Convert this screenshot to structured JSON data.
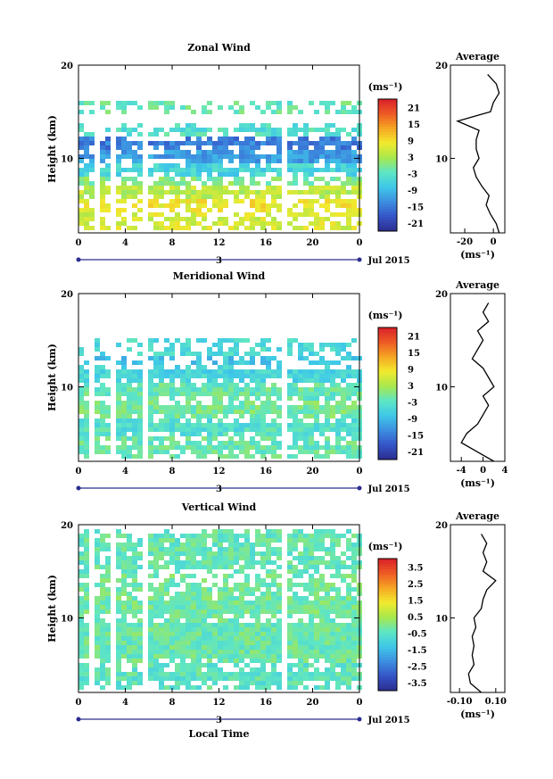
{
  "chart_data": [
    {
      "type": "heatmap",
      "title": "Zonal Wind",
      "ylabel": "Height (km)",
      "ylim": [
        2,
        20
      ],
      "xlim": [
        0,
        24
      ],
      "x_ticks": [
        "0",
        "4",
        "8",
        "12",
        "16",
        "20",
        "0"
      ],
      "y_ticks": [
        "10",
        "20"
      ],
      "date_label": "3",
      "month_label": "Jul 2015",
      "colorbar_unit": "(ms⁻¹)",
      "colorbar_ticks": [
        "21",
        "15",
        "9",
        "3",
        "-3",
        "-9",
        "-15",
        "-21"
      ],
      "colorbar_range": [
        -24,
        24
      ],
      "gaps_hours": [
        1.5,
        2.9,
        5.8,
        9.6,
        17.8
      ],
      "layers": [
        {
          "from": 2.5,
          "to": 4.0,
          "value": 6
        },
        {
          "from": 4.0,
          "to": 5.5,
          "value": 8
        },
        {
          "from": 5.5,
          "to": 7.0,
          "value": 4
        },
        {
          "from": 7.0,
          "to": 8.0,
          "value": 0
        },
        {
          "from": 8.0,
          "to": 9.5,
          "value": -6
        },
        {
          "from": 9.5,
          "to": 11.0,
          "value": -12
        },
        {
          "from": 11.0,
          "to": 12.3,
          "value": -15
        },
        {
          "from": 12.3,
          "to": 14.0,
          "value": -4
        },
        {
          "from": 14.5,
          "to": 16.0,
          "value": -2
        }
      ],
      "profile": {
        "title": "Average",
        "xlabel": "(ms⁻¹)",
        "x_ticks": [
          "-20",
          "0"
        ],
        "xlim": [
          -30,
          8
        ],
        "heights": [
          2,
          3,
          4,
          5,
          6,
          7,
          8,
          9,
          10,
          11,
          12,
          13,
          14,
          15,
          16,
          17,
          18,
          19
        ],
        "values": [
          4,
          2,
          -2,
          -5,
          -3,
          -8,
          -12,
          -14,
          -10,
          -12,
          -12,
          -10,
          -25,
          -2,
          0,
          4,
          2,
          -4
        ]
      }
    },
    {
      "type": "heatmap",
      "title": "Meridional Wind",
      "ylabel": "Height (km)",
      "ylim": [
        2,
        20
      ],
      "xlim": [
        0,
        24
      ],
      "x_ticks": [
        "0",
        "4",
        "8",
        "12",
        "16",
        "20",
        "0"
      ],
      "y_ticks": [
        "10",
        "20"
      ],
      "date_label": "3",
      "month_label": "Jul 2015",
      "colorbar_unit": "(ms⁻¹)",
      "colorbar_ticks": [
        "21",
        "15",
        "9",
        "3",
        "-3",
        "-9",
        "-15",
        "-21"
      ],
      "colorbar_range": [
        -24,
        24
      ],
      "gaps_hours": [
        1.3,
        2.9,
        5.8,
        9.6,
        17.8
      ],
      "layers": [
        {
          "from": 2.5,
          "to": 4.5,
          "value": -2
        },
        {
          "from": 4.5,
          "to": 6.5,
          "value": -4
        },
        {
          "from": 6.5,
          "to": 8.5,
          "value": -1
        },
        {
          "from": 8.5,
          "to": 10.5,
          "value": -2
        },
        {
          "from": 10.5,
          "to": 12.5,
          "value": -6
        },
        {
          "from": 12.5,
          "to": 13.5,
          "value": -8
        },
        {
          "from": 13.5,
          "to": 15.0,
          "value": -5
        }
      ],
      "profile": {
        "title": "Average",
        "xlabel": "(ms⁻¹)",
        "x_ticks": [
          "-4",
          "0",
          "4"
        ],
        "xlim": [
          -6,
          4
        ],
        "heights": [
          2,
          3,
          4,
          5,
          6,
          7,
          8,
          9,
          10,
          11,
          12,
          13,
          14,
          15,
          16,
          17,
          18,
          19
        ],
        "values": [
          2,
          -1,
          -4,
          -3,
          -1,
          0,
          1,
          0,
          2,
          1,
          0,
          -2,
          -1,
          0,
          -1,
          1,
          0,
          1
        ]
      }
    },
    {
      "type": "heatmap",
      "title": "Vertical Wind",
      "xlabel": "Local Time",
      "ylabel": "Height (km)",
      "ylim": [
        2,
        20
      ],
      "xlim": [
        0,
        24
      ],
      "x_ticks": [
        "0",
        "4",
        "8",
        "12",
        "16",
        "20",
        "0"
      ],
      "y_ticks": [
        "10",
        "20"
      ],
      "date_label": "3",
      "month_label": "Jul 2015",
      "colorbar_unit": "(ms⁻¹)",
      "colorbar_ticks": [
        "3.5",
        "2.5",
        "1.5",
        "0.5",
        "-0.5",
        "-1.5",
        "-2.5",
        "-3.5"
      ],
      "colorbar_range": [
        -4,
        4
      ],
      "gaps_hours": [
        1.3,
        2.9,
        5.8,
        9.6,
        17.8
      ],
      "layers": [
        {
          "from": 2.5,
          "to": 5.0,
          "value": -0.5
        },
        {
          "from": 5.0,
          "to": 10.0,
          "value": -0.3
        },
        {
          "from": 10.0,
          "to": 14.5,
          "value": -0.2
        },
        {
          "from": 14.5,
          "to": 19.5,
          "value": -0.4
        }
      ],
      "profile": {
        "title": "Average",
        "xlabel": "(ms⁻¹)",
        "x_ticks": [
          "-0.10",
          "0.10"
        ],
        "xlim": [
          -0.15,
          0.15
        ],
        "heights": [
          2,
          3,
          4,
          5,
          6,
          7,
          8,
          9,
          10,
          11,
          12,
          13,
          14,
          15,
          16,
          17,
          18,
          19
        ],
        "values": [
          0.02,
          -0.04,
          -0.05,
          -0.02,
          -0.03,
          -0.02,
          -0.03,
          -0.01,
          -0.02,
          0.02,
          0.03,
          0.05,
          0.1,
          0.03,
          0.05,
          0.03,
          0.05,
          0.02
        ]
      }
    }
  ]
}
